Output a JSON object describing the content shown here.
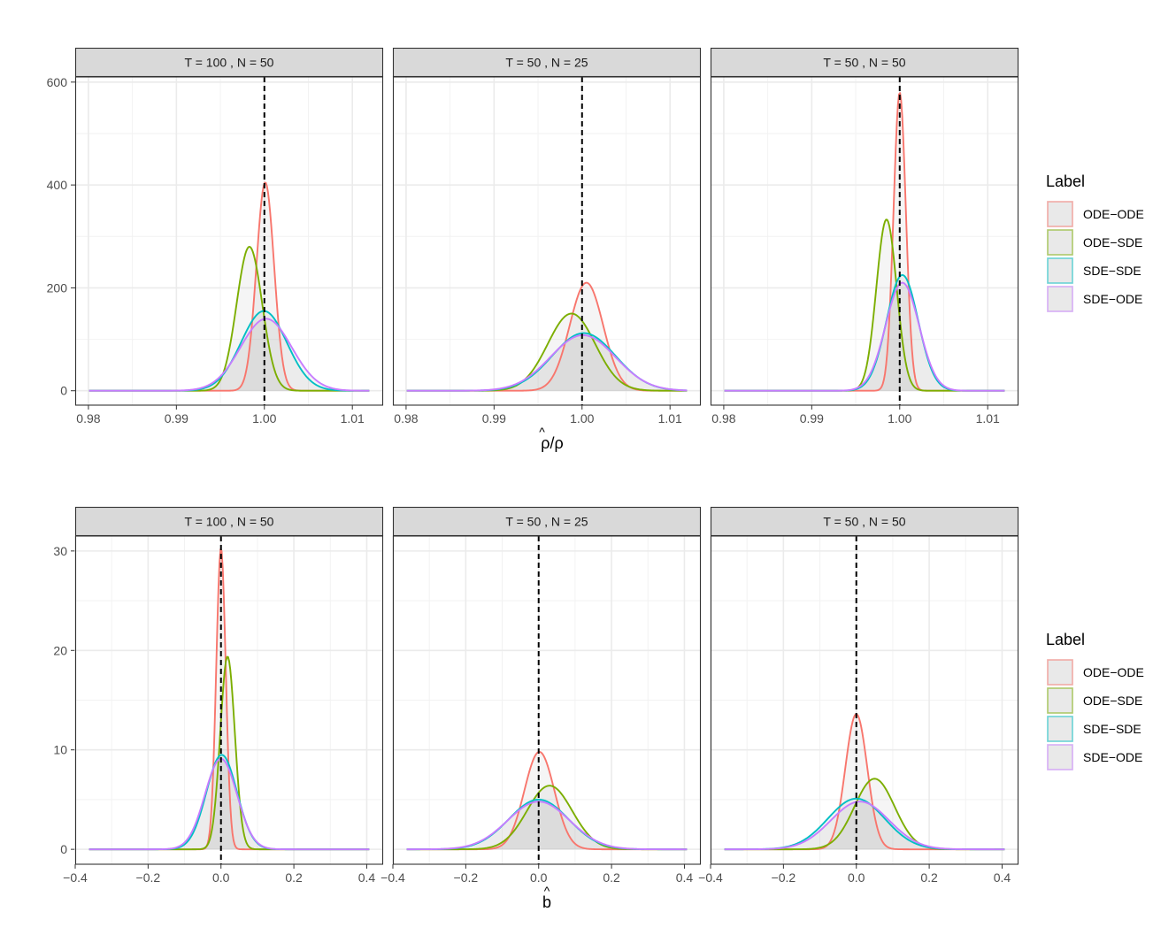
{
  "chart_data": [
    {
      "type": "area",
      "xlabel_base": "ρ/ρ",
      "xlabel_hat": "^",
      "yticks": [
        "0",
        "200",
        "400",
        "600"
      ],
      "ytick_values": [
        0,
        200,
        400,
        600
      ],
      "ylim": [
        -28,
        610
      ],
      "xlim": [
        0.9785,
        1.0135
      ],
      "xticks": [
        "0.98",
        "0.99",
        "1.00",
        "1.01"
      ],
      "xtick_values": [
        0.98,
        0.99,
        1.0,
        1.01
      ],
      "reference_line_x": 1.0,
      "legend": {
        "title": "Label",
        "entries": [
          "ODE−ODE",
          "ODE−SDE",
          "SDE−SDE",
          "SDE−ODE"
        ],
        "colors": [
          "#F8766D",
          "#7CAE00",
          "#00BFC4",
          "#C77CFF"
        ]
      },
      "panels": [
        {
          "title": "T = 100 , N = 50",
          "series": [
            {
              "name": "ODE−ODE",
              "center": 1.0001,
              "sd": 0.001,
              "peak": 405
            },
            {
              "name": "ODE−SDE",
              "center": 0.9983,
              "sd": 0.00145,
              "peak": 280
            },
            {
              "name": "SDE−SDE",
              "center": 0.99995,
              "sd": 0.0026,
              "peak": 155
            },
            {
              "name": "SDE−ODE",
              "center": 1.0002,
              "sd": 0.0029,
              "peak": 140
            }
          ]
        },
        {
          "title": "T = 50 , N = 25",
          "series": [
            {
              "name": "ODE−ODE",
              "center": 1.0005,
              "sd": 0.0019,
              "peak": 210
            },
            {
              "name": "ODE−SDE",
              "center": 0.9988,
              "sd": 0.0027,
              "peak": 150
            },
            {
              "name": "SDE−SDE",
              "center": 1.0002,
              "sd": 0.0036,
              "peak": 112
            },
            {
              "name": "SDE−ODE",
              "center": 1.0001,
              "sd": 0.0037,
              "peak": 108
            }
          ]
        },
        {
          "title": "T = 50 , N = 50",
          "series": [
            {
              "name": "ODE−ODE",
              "center": 1.0,
              "sd": 0.0007,
              "peak": 580
            },
            {
              "name": "ODE−SDE",
              "center": 0.9985,
              "sd": 0.00115,
              "peak": 333
            },
            {
              "name": "SDE−SDE",
              "center": 1.0003,
              "sd": 0.0018,
              "peak": 225
            },
            {
              "name": "SDE−ODE",
              "center": 1.0003,
              "sd": 0.0019,
              "peak": 210
            }
          ]
        }
      ]
    },
    {
      "type": "area",
      "xlabel_base": "b",
      "xlabel_hat": "^",
      "yticks": [
        "0",
        "10",
        "20",
        "30"
      ],
      "ytick_values": [
        0,
        10,
        20,
        30
      ],
      "ylim": [
        -1.5,
        31.5
      ],
      "xlim": [
        -0.4,
        0.445
      ],
      "xticks": [
        "−0.4",
        "−0.2",
        "0.0",
        "0.2",
        "0.4"
      ],
      "xtick_values": [
        -0.4,
        -0.2,
        0.0,
        0.2,
        0.4
      ],
      "reference_line_x": 0.0,
      "legend": {
        "title": "Label",
        "entries": [
          "ODE−ODE",
          "ODE−SDE",
          "SDE−SDE",
          "SDE−ODE"
        ],
        "colors": [
          "#F8766D",
          "#7CAE00",
          "#00BFC4",
          "#C77CFF"
        ]
      },
      "panels": [
        {
          "title": "T = 100 , N = 50",
          "series": [
            {
              "name": "ODE−ODE",
              "center": 0.0,
              "sd": 0.013,
              "peak": 30.3
            },
            {
              "name": "ODE−SDE",
              "center": 0.018,
              "sd": 0.02,
              "peak": 19.4
            },
            {
              "name": "SDE−SDE",
              "center": 0.002,
              "sd": 0.042,
              "peak": 9.5
            },
            {
              "name": "SDE−ODE",
              "center": 0.0,
              "sd": 0.044,
              "peak": 9.1
            }
          ]
        },
        {
          "title": "T = 50 , N = 25",
          "series": [
            {
              "name": "ODE−ODE",
              "center": 0.002,
              "sd": 0.041,
              "peak": 9.8
            },
            {
              "name": "ODE−SDE",
              "center": 0.03,
              "sd": 0.062,
              "peak": 6.4
            },
            {
              "name": "SDE−SDE",
              "center": 0.0,
              "sd": 0.082,
              "peak": 5.0
            },
            {
              "name": "SDE−ODE",
              "center": 0.0,
              "sd": 0.085,
              "peak": 4.8
            }
          ]
        },
        {
          "title": "T = 50 , N = 50",
          "series": [
            {
              "name": "ODE−ODE",
              "center": 0.0,
              "sd": 0.03,
              "peak": 13.6
            },
            {
              "name": "ODE−SDE",
              "center": 0.05,
              "sd": 0.055,
              "peak": 7.1
            },
            {
              "name": "SDE−SDE",
              "center": 0.0,
              "sd": 0.078,
              "peak": 5.1
            },
            {
              "name": "SDE−ODE",
              "center": 0.01,
              "sd": 0.08,
              "peak": 4.8
            }
          ]
        }
      ]
    }
  ]
}
